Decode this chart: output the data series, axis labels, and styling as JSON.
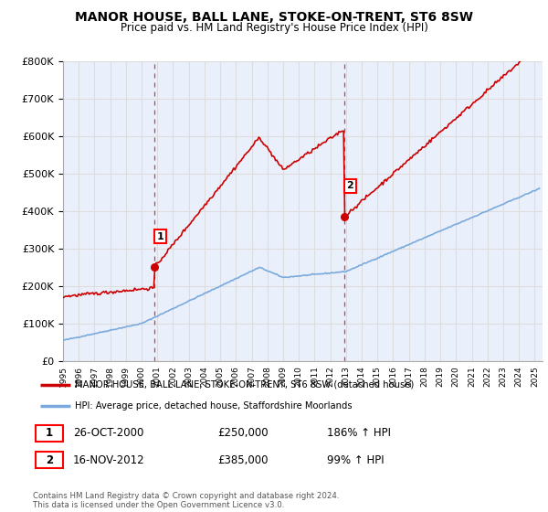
{
  "title": "MANOR HOUSE, BALL LANE, STOKE-ON-TRENT, ST6 8SW",
  "subtitle": "Price paid vs. HM Land Registry's House Price Index (HPI)",
  "ylim": [
    0,
    800000
  ],
  "yticks": [
    0,
    100000,
    200000,
    300000,
    400000,
    500000,
    600000,
    700000,
    800000
  ],
  "ytick_labels": [
    "£0",
    "£100K",
    "£200K",
    "£300K",
    "£400K",
    "£500K",
    "£600K",
    "£700K",
    "£800K"
  ],
  "sale1": {
    "date_num": 2000.82,
    "price": 250000,
    "label": "1",
    "date_str": "26-OCT-2000",
    "hpi_pct": "186%"
  },
  "sale2": {
    "date_num": 2012.88,
    "price": 385000,
    "label": "2",
    "date_str": "16-NOV-2012",
    "hpi_pct": "99%"
  },
  "legend_line1": "MANOR HOUSE, BALL LANE, STOKE-ON-TRENT, ST6 8SW (detached house)",
  "legend_line2": "HPI: Average price, detached house, Staffordshire Moorlands",
  "footer": "Contains HM Land Registry data © Crown copyright and database right 2024.\nThis data is licensed under the Open Government Licence v3.0.",
  "red_color": "#cc0000",
  "blue_color": "#7aaadd",
  "grid_color": "#dddddd",
  "bg_color": "#eaf0fb"
}
